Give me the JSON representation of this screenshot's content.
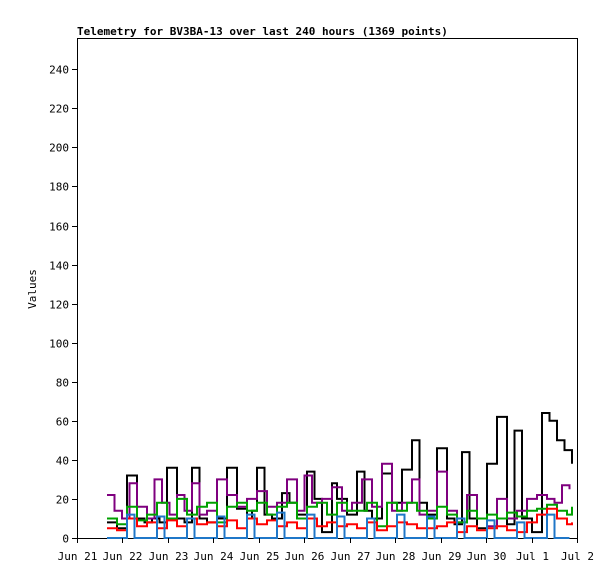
{
  "chart_data": {
    "type": "line",
    "title": "Telemetry for BV3BA-13 over last 240 hours (1369 points)",
    "xlabel": "",
    "ylabel": "Values",
    "x_unit": "days",
    "xlim": [
      0,
      10
    ],
    "ylim": [
      0,
      256
    ],
    "grid": false,
    "legend": "none",
    "x_tick_labels": [
      "Jun 21",
      "Jun 22",
      "Jun 23",
      "Jun 24",
      "Jun 25",
      "Jun 26",
      "Jun 27",
      "Jun 28",
      "Jun 29",
      "Jun 30",
      "Jul 1",
      "Jul 2"
    ],
    "x_tick_positions": [
      0,
      0.909,
      1.818,
      2.727,
      3.636,
      4.545,
      5.455,
      6.364,
      7.273,
      8.182,
      9.091,
      10
    ],
    "y_ticks": [
      0,
      20,
      40,
      60,
      80,
      100,
      120,
      140,
      160,
      180,
      200,
      220,
      240
    ],
    "series": [
      {
        "color": "#000000",
        "x": [
          0.6,
          0.8,
          1.0,
          1.2,
          1.35,
          1.5,
          1.65,
          1.8,
          2.0,
          2.15,
          2.3,
          2.45,
          2.6,
          2.8,
          3.0,
          3.2,
          3.4,
          3.5,
          3.6,
          3.75,
          3.9,
          4.1,
          4.25,
          4.4,
          4.6,
          4.75,
          4.9,
          5.1,
          5.2,
          5.4,
          5.6,
          5.75,
          5.9,
          6.1,
          6.3,
          6.5,
          6.7,
          6.85,
          7.0,
          7.2,
          7.4,
          7.55,
          7.7,
          7.85,
          8.0,
          8.2,
          8.4,
          8.6,
          8.75,
          8.9,
          9.1,
          9.3,
          9.45,
          9.6,
          9.75,
          9.9
        ],
        "values": [
          8,
          5,
          32,
          10,
          8,
          10,
          8,
          36,
          10,
          8,
          36,
          10,
          8,
          10,
          36,
          15,
          10,
          14,
          36,
          12,
          10,
          23,
          18,
          12,
          34,
          20,
          3,
          28,
          20,
          12,
          34,
          14,
          10,
          33,
          18,
          35,
          50,
          18,
          12,
          46,
          10,
          7,
          44,
          10,
          5,
          38,
          62,
          7,
          55,
          10,
          3,
          64,
          60,
          50,
          45,
          38
        ]
      },
      {
        "color": "#7f007f",
        "x": [
          0.6,
          0.75,
          0.9,
          1.05,
          1.2,
          1.4,
          1.55,
          1.7,
          1.85,
          2.0,
          2.15,
          2.3,
          2.45,
          2.6,
          2.8,
          3.0,
          3.2,
          3.4,
          3.6,
          3.8,
          4.0,
          4.2,
          4.4,
          4.55,
          4.7,
          4.9,
          5.1,
          5.3,
          5.5,
          5.7,
          5.9,
          6.1,
          6.3,
          6.5,
          6.7,
          6.85,
          7.0,
          7.2,
          7.4,
          7.6,
          7.8,
          8.0,
          8.2,
          8.4,
          8.6,
          8.8,
          9.0,
          9.2,
          9.4,
          9.55,
          9.7,
          9.85
        ],
        "values": [
          22,
          14,
          10,
          28,
          16,
          10,
          30,
          18,
          12,
          22,
          14,
          28,
          12,
          14,
          30,
          22,
          16,
          20,
          24,
          16,
          18,
          30,
          14,
          32,
          18,
          20,
          26,
          14,
          18,
          30,
          16,
          38,
          14,
          18,
          30,
          12,
          14,
          34,
          14,
          8,
          22,
          10,
          6,
          20,
          10,
          14,
          20,
          22,
          20,
          18,
          27,
          25
        ]
      },
      {
        "color": "#00a000",
        "x": [
          0.6,
          0.8,
          1.0,
          1.2,
          1.4,
          1.6,
          1.8,
          2.0,
          2.2,
          2.4,
          2.6,
          2.8,
          3.0,
          3.2,
          3.4,
          3.6,
          3.8,
          4.0,
          4.2,
          4.4,
          4.6,
          4.8,
          5.0,
          5.2,
          5.4,
          5.6,
          5.8,
          6.0,
          6.2,
          6.4,
          6.6,
          6.8,
          7.0,
          7.2,
          7.4,
          7.6,
          7.8,
          8.0,
          8.2,
          8.4,
          8.6,
          8.8,
          9.0,
          9.2,
          9.4,
          9.6,
          9.8,
          9.9
        ],
        "values": [
          10,
          7,
          16,
          9,
          12,
          18,
          10,
          20,
          12,
          16,
          18,
          8,
          16,
          18,
          14,
          18,
          12,
          16,
          18,
          10,
          16,
          18,
          12,
          18,
          14,
          14,
          18,
          6,
          18,
          14,
          18,
          14,
          10,
          16,
          12,
          8,
          14,
          10,
          12,
          10,
          13,
          11,
          14,
          15,
          17,
          14,
          12,
          16
        ]
      },
      {
        "color": "#ff0000",
        "x": [
          0.6,
          0.8,
          1.0,
          1.2,
          1.4,
          1.6,
          1.8,
          2.0,
          2.2,
          2.4,
          2.6,
          2.8,
          3.0,
          3.2,
          3.4,
          3.6,
          3.8,
          4.0,
          4.2,
          4.4,
          4.6,
          4.8,
          5.0,
          5.2,
          5.4,
          5.6,
          5.8,
          6.0,
          6.2,
          6.4,
          6.6,
          6.8,
          7.0,
          7.2,
          7.4,
          7.6,
          7.8,
          8.0,
          8.2,
          8.4,
          8.6,
          8.8,
          9.0,
          9.2,
          9.4,
          9.6,
          9.8,
          9.9
        ],
        "values": [
          5,
          4,
          10,
          6,
          8,
          5,
          9,
          6,
          10,
          7,
          8,
          6,
          9,
          5,
          10,
          7,
          9,
          6,
          8,
          5,
          10,
          6,
          8,
          6,
          7,
          5,
          8,
          4,
          6,
          8,
          7,
          5,
          5,
          6,
          8,
          3,
          6,
          4,
          5,
          6,
          4,
          3,
          8,
          12,
          15,
          10,
          7,
          8
        ]
      },
      {
        "color": "#1f77c8",
        "x": [
          0.6,
          0.75,
          0.9,
          1.0,
          1.15,
          1.3,
          1.45,
          1.6,
          1.75,
          1.9,
          2.05,
          2.2,
          2.35,
          2.5,
          2.65,
          2.8,
          2.95,
          3.1,
          3.25,
          3.4,
          3.55,
          3.7,
          3.85,
          4.0,
          4.15,
          4.3,
          4.45,
          4.6,
          4.75,
          4.9,
          5.05,
          5.2,
          5.35,
          5.5,
          5.65,
          5.8,
          5.95,
          6.1,
          6.25,
          6.4,
          6.55,
          6.7,
          6.85,
          7.0,
          7.15,
          7.3,
          7.45,
          7.6,
          7.75,
          7.9,
          8.05,
          8.2,
          8.35,
          8.5,
          8.65,
          8.8,
          8.95,
          9.1,
          9.25,
          9.4,
          9.55,
          9.7,
          9.85
        ],
        "values": [
          0,
          0,
          0,
          12,
          0,
          0,
          0,
          11,
          0,
          0,
          0,
          10,
          0,
          0,
          0,
          11,
          0,
          0,
          0,
          12,
          0,
          0,
          0,
          13,
          0,
          0,
          0,
          12,
          0,
          0,
          0,
          11,
          0,
          0,
          0,
          10,
          0,
          0,
          0,
          12,
          0,
          0,
          0,
          11,
          0,
          0,
          0,
          10,
          0,
          0,
          0,
          9,
          0,
          0,
          0,
          8,
          0,
          0,
          0,
          12,
          0,
          0,
          0
        ]
      }
    ]
  }
}
